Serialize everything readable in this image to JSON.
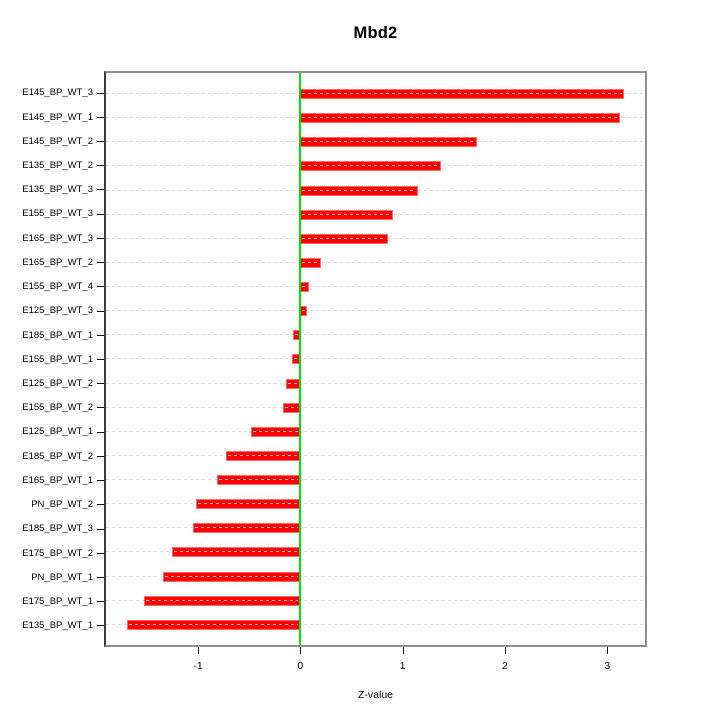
{
  "chart_data": {
    "type": "bar",
    "orientation": "horizontal",
    "title": "Mbd2",
    "xlabel": "Z-value",
    "categories": [
      "E145_BP_WT_3",
      "E145_BP_WT_1",
      "E145_BP_WT_2",
      "E135_BP_WT_2",
      "E135_BP_WT_3",
      "E155_BP_WT_3",
      "E165_BP_WT_3",
      "E165_BP_WT_2",
      "E155_BP_WT_4",
      "E125_BP_WT_3",
      "E185_BP_WT_1",
      "E155_BP_WT_1",
      "E125_BP_WT_2",
      "E155_BP_WT_2",
      "E125_BP_WT_1",
      "E185_BP_WT_2",
      "E165_BP_WT_1",
      "PN_BP_WT_2",
      "E185_BP_WT_3",
      "E175_BP_WT_2",
      "PN_BP_WT_1",
      "E175_BP_WT_1",
      "E135_BP_WT_1"
    ],
    "values": [
      3.17,
      3.13,
      1.73,
      1.38,
      1.15,
      0.91,
      0.86,
      0.2,
      0.09,
      0.07,
      -0.07,
      -0.08,
      -0.14,
      -0.17,
      -0.48,
      -0.73,
      -0.82,
      -1.02,
      -1.05,
      -1.26,
      -1.34,
      -1.53,
      -1.7
    ],
    "xlim": [
      -1.9,
      3.37
    ],
    "xticks": [
      -1,
      0,
      1,
      2,
      3
    ],
    "xtick_labels": [
      "-1",
      "0",
      "1",
      "2",
      "3"
    ],
    "grid": "dashed horizontal line per category",
    "legend": "none",
    "bar_color": "#ff0000",
    "zero_line_color": "#00e008",
    "gridline_color": "#dcdcdc",
    "box_border_color": "#8f8f8f",
    "axis_line_color": "#3d3d3d",
    "background_color": "#ffffff"
  }
}
